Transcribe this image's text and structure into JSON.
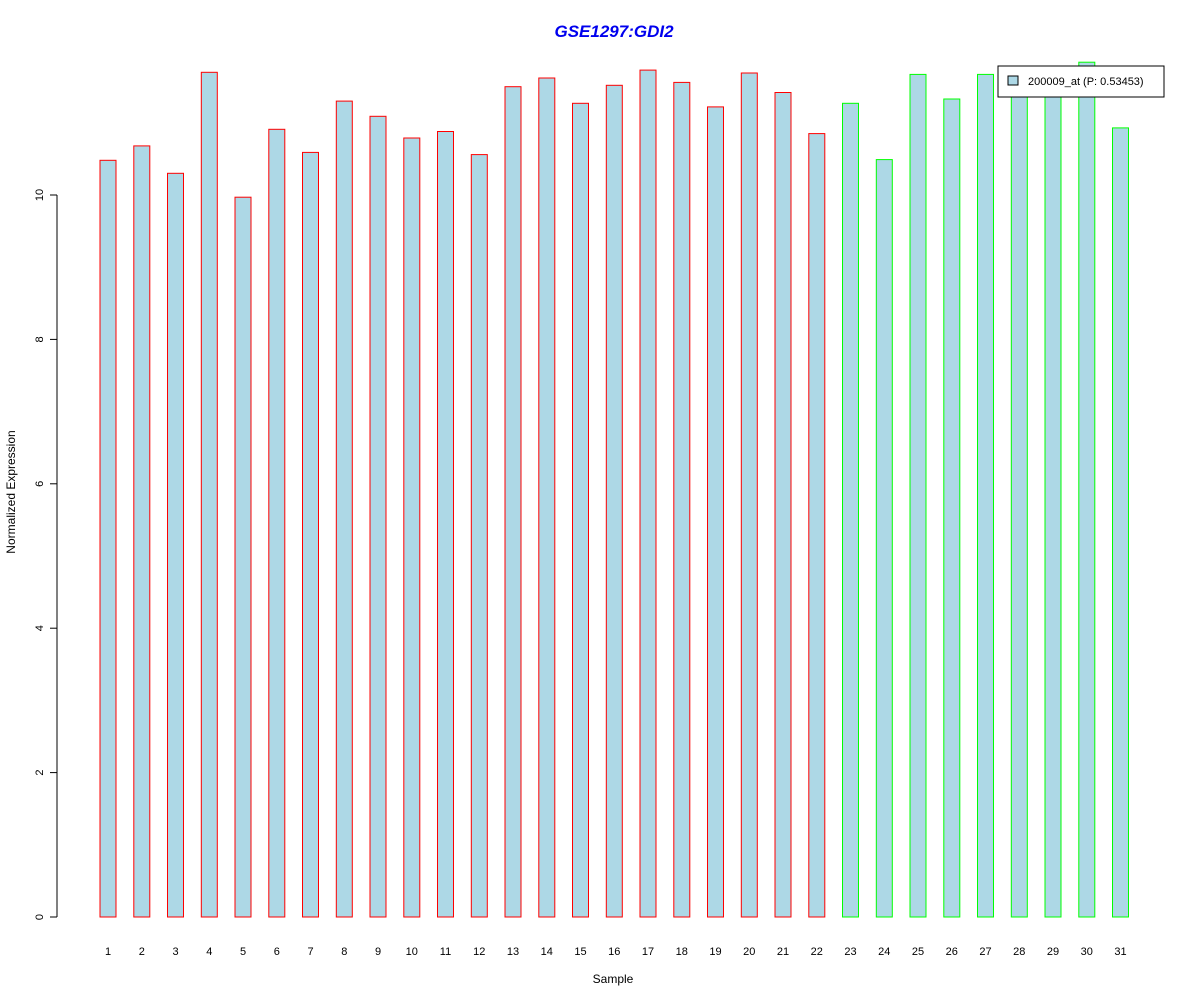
{
  "chart_data": {
    "type": "bar",
    "title": "GSE1297:GDI2",
    "xlabel": "Sample",
    "ylabel": "Normalized Expression",
    "categories": [
      "1",
      "2",
      "3",
      "4",
      "5",
      "6",
      "7",
      "8",
      "9",
      "10",
      "11",
      "12",
      "13",
      "14",
      "15",
      "16",
      "17",
      "18",
      "19",
      "20",
      "21",
      "22",
      "23",
      "24",
      "25",
      "26",
      "27",
      "28",
      "29",
      "30",
      "31"
    ],
    "series": [
      {
        "name": "200009_at (P: 0.53453)",
        "values": [
          10.48,
          10.68,
          10.3,
          11.7,
          9.97,
          10.91,
          10.59,
          11.3,
          11.09,
          10.79,
          10.88,
          10.56,
          11.5,
          11.62,
          11.27,
          11.52,
          11.73,
          11.56,
          11.22,
          11.69,
          11.42,
          10.85,
          11.27,
          10.49,
          11.67,
          11.33,
          11.67,
          11.5,
          11.46,
          11.84,
          10.93
        ]
      }
    ],
    "group_of_sample": [
      "a",
      "a",
      "a",
      "a",
      "a",
      "a",
      "a",
      "a",
      "a",
      "a",
      "a",
      "a",
      "a",
      "a",
      "a",
      "a",
      "a",
      "a",
      "a",
      "a",
      "a",
      "a",
      "b",
      "b",
      "b",
      "b",
      "b",
      "b",
      "b",
      "b",
      "b"
    ],
    "colors": {
      "bar_fill": "#ADD8E6",
      "group_a_border": "#FF0000",
      "group_b_border": "#00FF00",
      "title": "#0000EE"
    },
    "yticks": [
      0,
      2,
      4,
      6,
      8,
      10
    ],
    "ylim": [
      0,
      11.85
    ],
    "grid": false,
    "legend_position": "top-right"
  }
}
